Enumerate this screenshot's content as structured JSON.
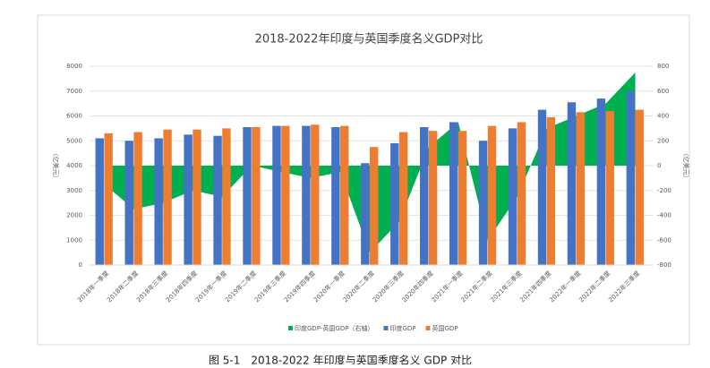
{
  "chart_data": {
    "type": "bar",
    "title": "2018-2022年印度与英国季度名义GDP对比",
    "caption": "图 5-1　2018-2022 年印度与英国季度名义 GDP 对比",
    "y_label": "（亿美元）",
    "y2_label": "（亿美元）",
    "categories": [
      "2018年一季度",
      "2018年二季度",
      "2018年三季度",
      "2018年四季度",
      "2019年一季度",
      "2019年二季度",
      "2019年三季度",
      "2019年四季度",
      "2020年一季度",
      "2020年二季度",
      "2020年三季度",
      "2020年四季度",
      "2021年一季度",
      "2021年二季度",
      "2021年三季度",
      "2021年四季度",
      "2022年一季度",
      "2022年二季度",
      "2022年三季度"
    ],
    "series": [
      {
        "name": "印度GDP-英国GDP（右轴）",
        "type": "area",
        "axis": "y2",
        "color": "#00b050",
        "values": [
          -150,
          -350,
          -300,
          -200,
          -250,
          0,
          -50,
          -100,
          -50,
          -700,
          -450,
          150,
          350,
          -600,
          -250,
          300,
          400,
          500,
          750
        ]
      },
      {
        "name": "印度GDP",
        "type": "bar",
        "color": "#4472c4",
        "values": [
          5100,
          5000,
          5100,
          5250,
          5200,
          5550,
          5600,
          5600,
          5550,
          4100,
          4900,
          5550,
          5750,
          5000,
          5500,
          6250,
          6550,
          6700,
          7000
        ]
      },
      {
        "name": "英国GDP",
        "type": "bar",
        "color": "#ed7d31",
        "values": [
          5300,
          5350,
          5450,
          5450,
          5500,
          5550,
          5600,
          5650,
          5600,
          4750,
          5350,
          5400,
          5400,
          5600,
          5750,
          5950,
          6150,
          6200,
          6250
        ]
      }
    ],
    "ylim": [
      0,
      8000
    ],
    "yticks": [
      0,
      1000,
      2000,
      3000,
      4000,
      5000,
      6000,
      7000,
      8000
    ],
    "y2lim": [
      -800,
      800
    ],
    "y2ticks": [
      -800,
      -600,
      -400,
      -200,
      0,
      200,
      400,
      600,
      800
    ],
    "grid": true
  }
}
